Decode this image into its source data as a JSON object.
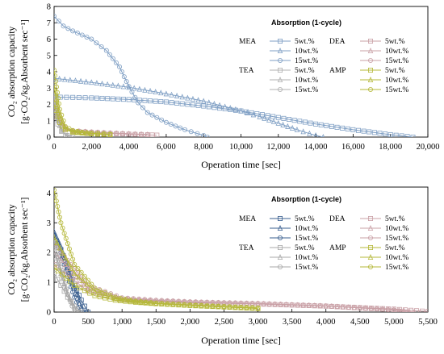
{
  "chart_data": [
    {
      "type": "line",
      "xlabel": "Operation time [sec]",
      "ylabel_line1": "CO₂ absorption capacity",
      "ylabel_line2": "[g·CO₂/kg.Absorbent sec⁻¹]",
      "xlim": [
        0,
        20000
      ],
      "ylim": [
        0,
        8
      ],
      "xticks": [
        0,
        2000,
        4000,
        6000,
        8000,
        10000,
        12000,
        14000,
        16000,
        18000,
        20000
      ],
      "xtick_labels": [
        "0",
        "2,000",
        "4,000",
        "6,000",
        "8,000",
        "10,000",
        "12,000",
        "14,000",
        "16,000",
        "18,000",
        "20,000"
      ],
      "yticks": [
        0,
        1,
        2,
        3,
        4,
        5,
        6,
        7,
        8
      ],
      "ytick_labels": [
        "0",
        "1",
        "2",
        "3",
        "4",
        "5",
        "6",
        "7",
        "8"
      ],
      "legend": {
        "title": "Absorption (1-cycle)",
        "placement": "top-right",
        "groups": [
          {
            "label": "MEA",
            "entries": [
              "5wt.%",
              "10wt.%",
              "15wt.%"
            ]
          },
          {
            "label": "DEA",
            "entries": [
              "5wt.%",
              "10wt.%",
              "15wt.%"
            ]
          },
          {
            "label": "TEA",
            "entries": [
              "5wt.%",
              "10wt.%",
              "15wt.%"
            ]
          },
          {
            "label": "AMP",
            "entries": [
              "5wt.%",
              "10wt.%",
              "15wt.%"
            ]
          }
        ]
      },
      "series": [
        {
          "name": "MEA 5wt.%",
          "color": "#7f9fc4",
          "marker": "square",
          "x": [
            0,
            1000,
            2000,
            4000,
            6000,
            8000,
            10000,
            12000,
            14000,
            16000,
            18000,
            19200
          ],
          "y": [
            2.45,
            2.43,
            2.4,
            2.3,
            2.15,
            1.9,
            1.6,
            1.2,
            0.8,
            0.45,
            0.15,
            0.0
          ]
        },
        {
          "name": "MEA 10wt.%",
          "color": "#7f9fc4",
          "marker": "triangle",
          "x": [
            0,
            2000,
            4000,
            6000,
            8000,
            10000,
            11000,
            12000,
            13000,
            14000,
            14400
          ],
          "y": [
            3.6,
            3.35,
            3.05,
            2.65,
            2.2,
            1.6,
            1.25,
            0.85,
            0.45,
            0.1,
            0.0
          ]
        },
        {
          "name": "MEA 15wt.%",
          "color": "#7f9fc4",
          "marker": "circle",
          "x": [
            0,
            500,
            1000,
            2000,
            2800,
            3500,
            4000,
            4500,
            5000,
            6000,
            7000,
            8000,
            8200
          ],
          "y": [
            7.4,
            6.8,
            6.5,
            6.0,
            5.3,
            4.3,
            3.1,
            2.1,
            1.5,
            0.9,
            0.45,
            0.1,
            0.0
          ]
        },
        {
          "name": "DEA 5wt.%",
          "color": "#c9a0a6",
          "marker": "square",
          "x": [
            0,
            300,
            600,
            1000,
            2000,
            3000,
            4000,
            5000,
            5500
          ],
          "y": [
            1.6,
            0.9,
            0.5,
            0.35,
            0.28,
            0.22,
            0.18,
            0.14,
            0.12
          ]
        },
        {
          "name": "DEA 10wt.%",
          "color": "#c9a0a6",
          "marker": "triangle",
          "x": [
            0,
            300,
            600,
            1000,
            2000,
            3000,
            4000,
            5000
          ],
          "y": [
            2.0,
            1.0,
            0.55,
            0.38,
            0.3,
            0.24,
            0.2,
            0.15
          ]
        },
        {
          "name": "DEA 15wt.%",
          "color": "#c9a0a6",
          "marker": "circle",
          "x": [
            0,
            300,
            600,
            1000,
            2000,
            3000,
            4000,
            5000
          ],
          "y": [
            2.3,
            1.1,
            0.6,
            0.4,
            0.32,
            0.26,
            0.2,
            0.16
          ]
        },
        {
          "name": "TEA 5wt.%",
          "color": "#b0b0b0",
          "marker": "square",
          "x": [
            0,
            200,
            400,
            700,
            1000
          ],
          "y": [
            1.6,
            0.8,
            0.35,
            0.1,
            0.0
          ]
        },
        {
          "name": "TEA 10wt.%",
          "color": "#b0b0b0",
          "marker": "triangle",
          "x": [
            0,
            200,
            400,
            700,
            900
          ],
          "y": [
            2.2,
            1.0,
            0.4,
            0.1,
            0.0
          ]
        },
        {
          "name": "TEA 15wt.%",
          "color": "#b0b0b0",
          "marker": "circle",
          "x": [
            0,
            200,
            400,
            600,
            800
          ],
          "y": [
            2.6,
            1.2,
            0.45,
            0.12,
            0.0
          ]
        },
        {
          "name": "AMP 5wt.%",
          "color": "#b5b83a",
          "marker": "square",
          "x": [
            0,
            300,
            600,
            1000,
            1500,
            2000,
            3000
          ],
          "y": [
            2.0,
            0.9,
            0.45,
            0.3,
            0.25,
            0.2,
            0.15
          ]
        },
        {
          "name": "AMP 10wt.%",
          "color": "#b5b83a",
          "marker": "triangle",
          "x": [
            0,
            300,
            600,
            1000,
            1500,
            2000,
            3000
          ],
          "y": [
            3.0,
            1.3,
            0.55,
            0.35,
            0.28,
            0.22,
            0.16
          ]
        },
        {
          "name": "AMP 15wt.%",
          "color": "#b5b83a",
          "marker": "circle",
          "x": [
            0,
            300,
            600,
            1000,
            1500,
            2000,
            3000
          ],
          "y": [
            4.1,
            1.7,
            0.65,
            0.4,
            0.3,
            0.24,
            0.17
          ]
        }
      ]
    },
    {
      "type": "line",
      "xlabel": "Operation time [sec]",
      "ylabel_line1": "CO₂ absorption capacity",
      "ylabel_line2": "[g·CO₂/kg.Absorbent sec⁻¹]",
      "xlim": [
        0,
        5500
      ],
      "ylim": [
        0,
        4.2
      ],
      "xticks": [
        0,
        500,
        1000,
        1500,
        2000,
        2500,
        3000,
        3500,
        4000,
        4500,
        5000,
        5500
      ],
      "xtick_labels": [
        "0",
        "500",
        "1,000",
        "1,500",
        "2,000",
        "2,500",
        "3,000",
        "3,500",
        "4,000",
        "4,500",
        "5,000",
        "5,500"
      ],
      "yticks": [
        0,
        1,
        2,
        3,
        4
      ],
      "ytick_labels": [
        "0",
        "1",
        "2",
        "3",
        "4"
      ],
      "legend": {
        "title": "Absorption (1-cycle)",
        "placement": "top-right",
        "groups": [
          {
            "label": "MEA",
            "entries": [
              "5wt.%",
              "10wt.%",
              "15wt.%"
            ]
          },
          {
            "label": "DEA",
            "entries": [
              "5wt.%",
              "10wt.%",
              "15wt.%"
            ]
          },
          {
            "label": "TEA",
            "entries": [
              "5wt.%",
              "10wt.%",
              "15wt.%"
            ]
          },
          {
            "label": "AMP",
            "entries": [
              "5wt.%",
              "10wt.%",
              "15wt.%"
            ]
          }
        ]
      },
      "series": [
        {
          "name": "MEA 5wt.%",
          "color": "#3a5f8f",
          "marker": "square",
          "x": [
            0,
            100,
            200,
            300,
            400,
            500
          ],
          "y": [
            2.5,
            2.1,
            1.5,
            0.9,
            0.4,
            0.0
          ]
        },
        {
          "name": "MEA 10wt.%",
          "color": "#3a5f8f",
          "marker": "triangle",
          "x": [
            0,
            100,
            200,
            300,
            400,
            450
          ],
          "y": [
            2.7,
            2.2,
            1.5,
            0.8,
            0.2,
            0.0
          ]
        },
        {
          "name": "MEA 15wt.%",
          "color": "#3a5f8f",
          "marker": "circle",
          "x": [
            0,
            100,
            200,
            300,
            400
          ],
          "y": [
            2.6,
            2.0,
            1.2,
            0.5,
            0.0
          ]
        },
        {
          "name": "DEA 5wt.%",
          "color": "#c9a0a6",
          "marker": "square",
          "x": [
            0,
            500,
            1000,
            1500,
            2000,
            3000,
            4000,
            5000,
            5500
          ],
          "y": [
            1.6,
            0.7,
            0.42,
            0.36,
            0.32,
            0.27,
            0.2,
            0.1,
            0.02
          ]
        },
        {
          "name": "DEA 10wt.%",
          "color": "#c9a0a6",
          "marker": "triangle",
          "x": [
            0,
            500,
            1000,
            1500,
            2000,
            3000,
            4000,
            5000,
            5300
          ],
          "y": [
            2.0,
            0.8,
            0.45,
            0.38,
            0.33,
            0.28,
            0.2,
            0.08,
            0.0
          ]
        },
        {
          "name": "DEA 15wt.%",
          "color": "#c9a0a6",
          "marker": "circle",
          "x": [
            0,
            500,
            1000,
            1500,
            2000,
            3000,
            4000,
            5000,
            5200
          ],
          "y": [
            2.3,
            0.9,
            0.48,
            0.4,
            0.35,
            0.29,
            0.21,
            0.07,
            0.0
          ]
        },
        {
          "name": "TEA 5wt.%",
          "color": "#a8a8a8",
          "marker": "square",
          "x": [
            0,
            100,
            200,
            300,
            400
          ],
          "y": [
            1.3,
            0.9,
            0.5,
            0.2,
            0.0
          ]
        },
        {
          "name": "TEA 10wt.%",
          "color": "#a8a8a8",
          "marker": "triangle",
          "x": [
            0,
            100,
            200,
            300,
            350
          ],
          "y": [
            2.0,
            1.3,
            0.6,
            0.15,
            0.0
          ]
        },
        {
          "name": "TEA 15wt.%",
          "color": "#a8a8a8",
          "marker": "circle",
          "x": [
            0,
            100,
            200,
            300
          ],
          "y": [
            2.4,
            1.5,
            0.6,
            0.0
          ]
        },
        {
          "name": "AMP 5wt.%",
          "color": "#b5b83a",
          "marker": "square",
          "x": [
            0,
            300,
            600,
            900,
            1200,
            1500,
            2000,
            2500,
            3000
          ],
          "y": [
            1.5,
            0.9,
            0.55,
            0.4,
            0.33,
            0.28,
            0.22,
            0.17,
            0.12
          ]
        },
        {
          "name": "AMP 10wt.%",
          "color": "#b5b83a",
          "marker": "triangle",
          "x": [
            0,
            300,
            600,
            900,
            1200,
            1500,
            2000,
            2500,
            3000
          ],
          "y": [
            2.5,
            1.3,
            0.7,
            0.45,
            0.35,
            0.29,
            0.23,
            0.18,
            0.13
          ]
        },
        {
          "name": "AMP 15wt.%",
          "color": "#b5b83a",
          "marker": "circle",
          "x": [
            0,
            100,
            300,
            600,
            900,
            1200,
            1500,
            2000,
            2500,
            3000
          ],
          "y": [
            4.1,
            3.0,
            1.6,
            0.8,
            0.5,
            0.37,
            0.3,
            0.24,
            0.19,
            0.14
          ]
        }
      ]
    }
  ]
}
